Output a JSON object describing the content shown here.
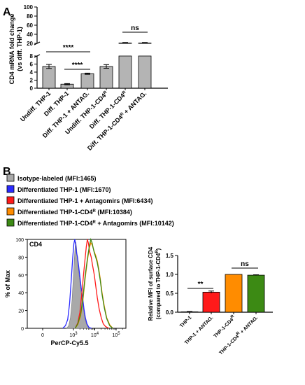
{
  "panel_labels": [
    "A",
    "B"
  ],
  "chart_data": [
    {
      "id": "A",
      "type": "bar",
      "ylabel": "CD4 mRNA fold change",
      "ylabel2": "(vs diff. THP-1)",
      "axis": "broken",
      "ylim_lower": [
        0,
        8
      ],
      "ylim_upper": [
        20,
        100
      ],
      "yticks_lower": [
        0,
        2,
        4,
        6,
        8
      ],
      "yticks_upper": [
        20,
        40,
        60,
        80,
        100
      ],
      "ytick_labels_lower": [
        "0",
        "2",
        "4",
        "6",
        "8"
      ],
      "ytick_labels_upper": [
        "20",
        "40",
        "60",
        "80",
        "100"
      ],
      "categories": [
        {
          "main": "Undiff. THP-1",
          "sup": "",
          "tail": ""
        },
        {
          "main": "Diff. THP-1",
          "sup": "",
          "tail": ""
        },
        {
          "main": "Diff. THP-1 + ANTAG.",
          "sup": "",
          "tail": ""
        },
        {
          "main": "Undiff. THP-1-CD4",
          "sup": "R",
          "tail": ""
        },
        {
          "main": "Diff. THP-1-CD4",
          "sup": "R",
          "tail": ""
        },
        {
          "main": "Diff. THP-1-CD4",
          "sup": "R",
          "tail": " + ANTAG."
        }
      ],
      "values": [
        5.4,
        1.0,
        3.6,
        5.4,
        21.0,
        21.0
      ],
      "errors": [
        0.5,
        0.15,
        0.15,
        0.45,
        0.9,
        0.9
      ],
      "bar_color": "#b4b4b4",
      "significance": [
        {
          "from": 0,
          "to": 2,
          "label": "****"
        },
        {
          "from": 1,
          "to": 2,
          "label": "****"
        },
        {
          "from": 4,
          "to": 5,
          "label": "ns"
        }
      ]
    },
    {
      "id": "B-histogram",
      "type": "line",
      "title": "CD4",
      "xlabel": "PerCP-Cy5.5",
      "ylabel": "% of Max",
      "x_scale": "log",
      "xlim": [
        0,
        200000
      ],
      "ylim": [
        0,
        100
      ],
      "yticks": [
        0,
        20,
        40,
        60,
        80,
        100
      ],
      "ytick_labels": [
        "0",
        "20",
        "40",
        "60",
        "80",
        "100"
      ],
      "xticks": [
        {
          "value": 0,
          "base": "0",
          "exp": ""
        },
        {
          "value": 1000,
          "base": "10",
          "exp": "3"
        },
        {
          "value": 10000,
          "base": "10",
          "exp": "4"
        },
        {
          "value": 100000,
          "base": "10",
          "exp": "5"
        }
      ],
      "series": [
        {
          "name": "Isotype-labeled (MFI:1465)",
          "color": "#a9a9a9",
          "filled": true,
          "x": [
            600,
            700,
            800,
            900,
            1000,
            1100,
            1200,
            1300,
            1400,
            1500,
            1600,
            1800,
            2000,
            2300,
            2600,
            3000,
            3400,
            4000,
            5000,
            6000
          ],
          "y": [
            0,
            3,
            12,
            32,
            60,
            78,
            92,
            97,
            90,
            80,
            74,
            62,
            52,
            40,
            30,
            20,
            12,
            5,
            1,
            0
          ]
        },
        {
          "name": "Differentiated THP-1 (MFI:1670)",
          "color": "#2a2aff",
          "filled": false,
          "x": [
            450,
            550,
            650,
            750,
            850,
            950,
            1050,
            1150,
            1250,
            1400,
            1550,
            1750,
            2000,
            2300,
            2700,
            3100,
            3600,
            4300,
            5300,
            7000
          ],
          "y": [
            0,
            3,
            10,
            28,
            55,
            80,
            95,
            100,
            95,
            85,
            80,
            70,
            58,
            46,
            34,
            22,
            12,
            5,
            1,
            0
          ]
        },
        {
          "name": "Differentiated THP-1 + Antagomirs (MFI:6434)",
          "color": "#ff1a1a",
          "filled": false,
          "x": [
            1200,
            1600,
            2000,
            2500,
            3000,
            3500,
            4000,
            4500,
            5000,
            5800,
            6800,
            8000,
            9500,
            11000,
            13000,
            16000,
            20000,
            25000,
            32000,
            45000
          ],
          "y": [
            0,
            6,
            18,
            40,
            62,
            78,
            92,
            100,
            96,
            86,
            80,
            70,
            60,
            48,
            35,
            22,
            12,
            5,
            2,
            0
          ]
        },
        {
          "name": "Differentiated THP-1-CD4R (MFI:10384)",
          "color": "#ff8c00",
          "filled": false,
          "x": [
            1200,
            1600,
            2200,
            2800,
            3500,
            4500,
            5500,
            6500,
            7500,
            8500,
            9500,
            11000,
            13000,
            15000,
            18000,
            22000,
            28000,
            36000,
            50000,
            70000
          ],
          "y": [
            0,
            4,
            14,
            32,
            55,
            76,
            90,
            96,
            94,
            90,
            86,
            82,
            76,
            68,
            56,
            40,
            25,
            12,
            4,
            0
          ]
        },
        {
          "name": "Differentiated THP-1-CD4R + Antagomirs (MFI:10142)",
          "color": "#3c8a14",
          "filled": false,
          "x": [
            1200,
            1600,
            2200,
            2800,
            3500,
            4500,
            5500,
            6500,
            7500,
            8500,
            9500,
            11000,
            13000,
            15000,
            18000,
            22000,
            28000,
            36000,
            50000,
            70000
          ],
          "y": [
            0,
            5,
            16,
            35,
            58,
            78,
            92,
            100,
            96,
            90,
            85,
            80,
            74,
            66,
            54,
            38,
            23,
            11,
            3,
            0
          ]
        }
      ]
    },
    {
      "id": "B-bar",
      "type": "bar",
      "ylabel": "Relative MFI of surface CD4",
      "ylabel2": "(compared to THP-1-CD4",
      "ylabel2_sup": "R",
      "ylabel2_end": ")",
      "ylim": [
        0,
        1.5
      ],
      "yticks": [
        0,
        0.5,
        1.0,
        1.5
      ],
      "ytick_labels": [
        "0.0",
        "0.5",
        "1.0",
        "1.5"
      ],
      "categories": [
        {
          "main": "THP-1",
          "sup": "",
          "tail": ""
        },
        {
          "main": "THP-1 + ANTAG.",
          "sup": "",
          "tail": ""
        },
        {
          "main": "THP-1-CD4",
          "sup": "R",
          "tail": ""
        },
        {
          "main": "THP-1-CD4",
          "sup": "R",
          "tail": " + ANTAG."
        }
      ],
      "values": [
        0.01,
        0.53,
        1.0,
        0.98
      ],
      "errors": [
        0.01,
        0.03,
        0.0,
        0.01
      ],
      "colors": [
        "#2a2aff",
        "#ff1a1a",
        "#ff8c00",
        "#3c8a14"
      ],
      "significance": [
        {
          "from": 0,
          "to": 1,
          "label": "**"
        },
        {
          "from": 2,
          "to": 3,
          "label": "ns"
        }
      ]
    }
  ],
  "legend": [
    {
      "text": "Isotype-labeled (MFI:1465)",
      "sup": "",
      "tail": "",
      "color": "#a9a9a9"
    },
    {
      "text": "Differentiated THP-1 (MFI:1670)",
      "sup": "",
      "tail": "",
      "color": "#2a2aff"
    },
    {
      "text": "Differentiated THP-1 + Antagomirs (MFI:6434)",
      "sup": "",
      "tail": "",
      "color": "#ff1a1a"
    },
    {
      "text": "Differentiated THP-1-CD4",
      "sup": "R",
      "tail": " (MFI:10384)",
      "color": "#ff8c00"
    },
    {
      "text": "Differentiated THP-1-CD4",
      "sup": "R",
      "tail": " + Antagomirs (MFI:10142)",
      "color": "#3c8a14"
    }
  ]
}
